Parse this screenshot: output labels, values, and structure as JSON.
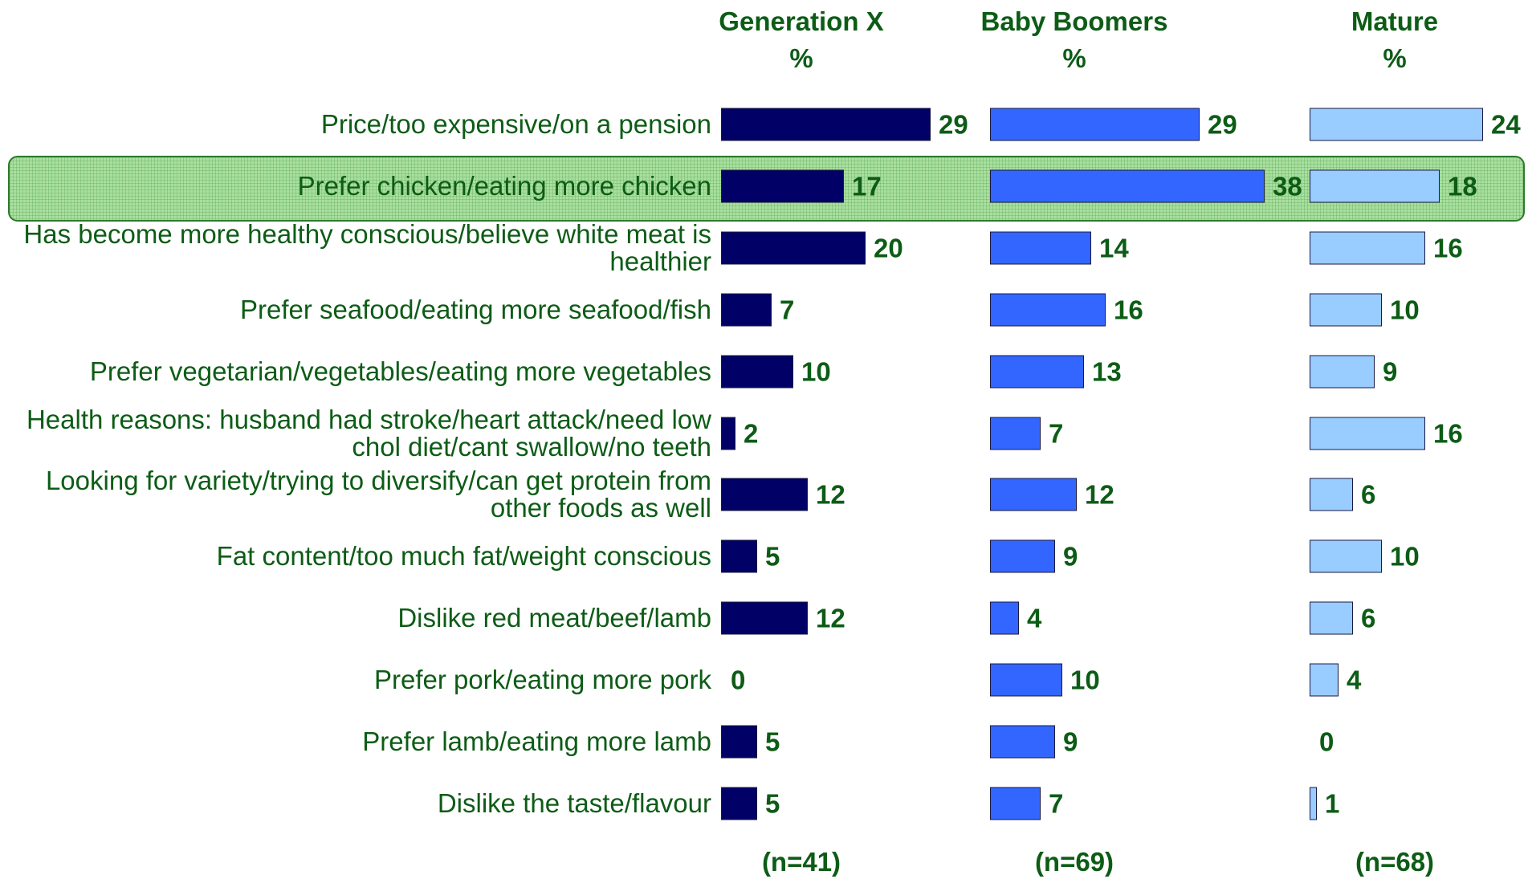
{
  "chart_data": {
    "type": "bar",
    "orientation": "horizontal",
    "unit_label": "%",
    "highlight": 1,
    "categories": [
      "Price/too expensive/on a pension",
      "Prefer chicken/eating more chicken",
      "Has become more healthy conscious/believe white meat is healthier",
      "Prefer seafood/eating more seafood/fish",
      "Prefer vegetarian/vegetables/eating more vegetables",
      "Health reasons: husband had stroke/heart attack/need low chol diet/cant swallow/no teeth",
      "Looking for variety/trying to diversify/can get protein from other foods as well",
      "Fat content/too much fat/weight conscious",
      "Dislike red meat/beef/lamb",
      "Prefer pork/eating more pork",
      "Prefer lamb/eating more lamb",
      "Dislike the taste/flavour"
    ],
    "series": [
      {
        "name": "Generation X",
        "color": "#000066",
        "sample_label": "(n=41)",
        "values": [
          29,
          17,
          20,
          7,
          10,
          2,
          12,
          5,
          12,
          0,
          5,
          5
        ]
      },
      {
        "name": "Baby Boomers",
        "color": "#3366ff",
        "sample_label": "(n=69)",
        "values": [
          29,
          38,
          14,
          16,
          13,
          7,
          12,
          9,
          4,
          10,
          9,
          7
        ]
      },
      {
        "name": "Mature",
        "color": "#99ccff",
        "sample_label": "(n=68)",
        "values": [
          24,
          18,
          16,
          10,
          9,
          16,
          6,
          10,
          6,
          4,
          0,
          1
        ]
      }
    ]
  }
}
